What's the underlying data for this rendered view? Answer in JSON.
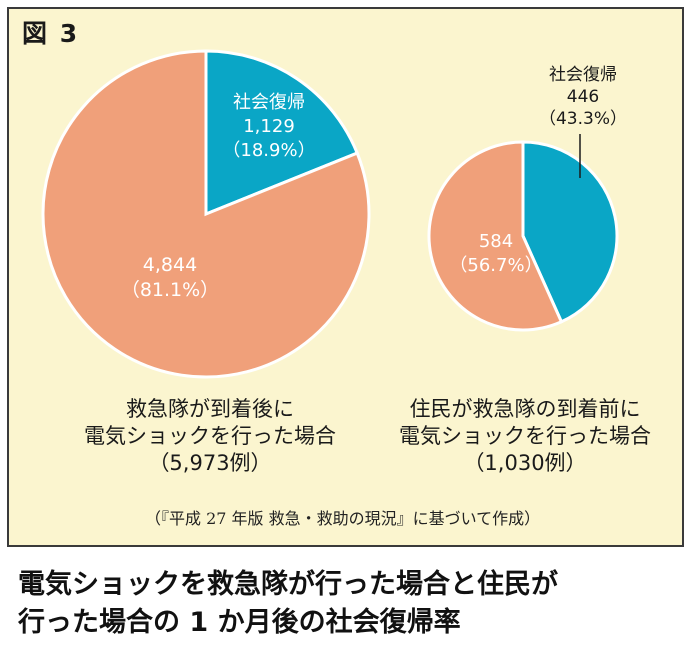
{
  "figure_label": "図 3",
  "colors": {
    "background": "#fbf5cf",
    "border": "#3a3a3a",
    "slice_teal": "#0aa6c6",
    "slice_salmon": "#f0a07a"
  },
  "chart_data": [
    {
      "type": "pie",
      "title_lines": [
        "救急隊が到着後に",
        "電気ショックを行った場合",
        "（5,973例）"
      ],
      "slices": [
        {
          "label": "社会復帰",
          "value": 1129,
          "value_text": "1,129",
          "percent_text": "（18.9%）",
          "color": "#0aa6c6"
        },
        {
          "label": "",
          "value": 4844,
          "value_text": "4,844",
          "percent_text": "（81.1%）",
          "color": "#f0a07a"
        }
      ]
    },
    {
      "type": "pie",
      "title_lines": [
        "住民が救急隊の到着前に",
        "電気ショックを行った場合",
        "（1,030例）"
      ],
      "slices": [
        {
          "label": "社会復帰",
          "value": 446,
          "value_text": "446",
          "percent_text": "（43.3%）",
          "color": "#0aa6c6"
        },
        {
          "label": "",
          "value": 584,
          "value_text": "584",
          "percent_text": "（56.7%）",
          "color": "#f0a07a"
        }
      ]
    }
  ],
  "source_note": "（『平成 27 年版 救急・救助の現況』に基づいて作成）",
  "bottom_title": {
    "line1": "電気ショックを救急隊が行った場合と住民が",
    "line2": "行った場合の 1 か月後の社会復帰率"
  }
}
